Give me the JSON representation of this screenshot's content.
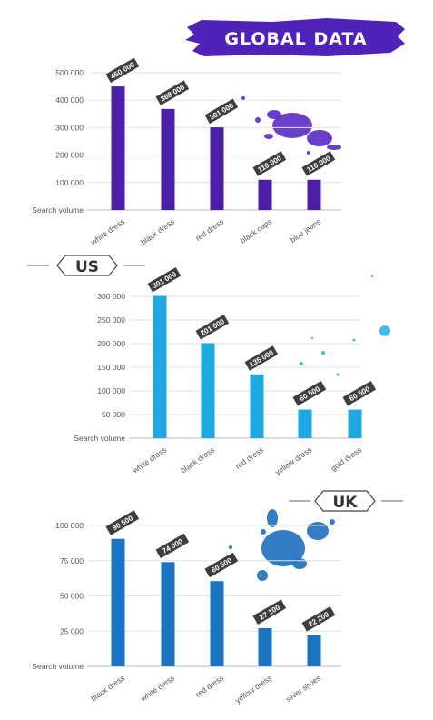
{
  "header": {
    "title": "GLOBAL DATA",
    "brush_color": "#4f22b8"
  },
  "chart_data": [
    {
      "type": "bar",
      "title": "",
      "ylabel": "Search volume",
      "ylim": [
        0,
        500000
      ],
      "yticks": [
        "100 000",
        "200 000",
        "300 000",
        "400 000",
        "500 000"
      ],
      "yticks_values": [
        100000,
        200000,
        300000,
        400000,
        500000
      ],
      "categories": [
        "white dress",
        "black dress",
        "red dress",
        "black caps",
        "blue jeans"
      ],
      "values": [
        450000,
        368000,
        301000,
        110000,
        110000
      ],
      "value_labels": [
        "450 000",
        "368 000",
        "301 000",
        "110 000",
        "110 000"
      ],
      "bar_color": "#4b1fa6",
      "splash_color": "#5a2bc4",
      "grid": true
    },
    {
      "type": "bar",
      "title": "US",
      "ylabel": "Search volume",
      "ylim": [
        0,
        300000
      ],
      "yticks": [
        "50 000",
        "100 000",
        "150 000",
        "200 000",
        "250 000",
        "300 000"
      ],
      "yticks_values": [
        50000,
        100000,
        150000,
        200000,
        250000,
        300000
      ],
      "categories": [
        "white dress",
        "black dress",
        "red dress",
        "yellow dress",
        "gold dress"
      ],
      "values": [
        301000,
        201000,
        135000,
        60500,
        60500
      ],
      "value_labels": [
        "301 000",
        "201 000",
        "135 000",
        "60 500",
        "60 500"
      ],
      "bar_color": "#1fa9e1",
      "splash_color": "#29b1e6",
      "grid": true
    },
    {
      "type": "bar",
      "title": "UK",
      "ylabel": "Search volume",
      "ylim": [
        0,
        100000
      ],
      "yticks": [
        "25 000",
        "50 000",
        "75 000",
        "100 000"
      ],
      "yticks_values": [
        25000,
        50000,
        75000,
        100000
      ],
      "categories": [
        "black dress",
        "white dress",
        "red dress",
        "yellow dress",
        "silver shoes"
      ],
      "values": [
        90500,
        74000,
        60500,
        27100,
        22200
      ],
      "value_labels": [
        "90 500",
        "74 000",
        "60 500",
        "27 100",
        "22 200"
      ],
      "bar_color": "#1a74bf",
      "splash_color": "#1c6fbd",
      "grid": true
    }
  ]
}
